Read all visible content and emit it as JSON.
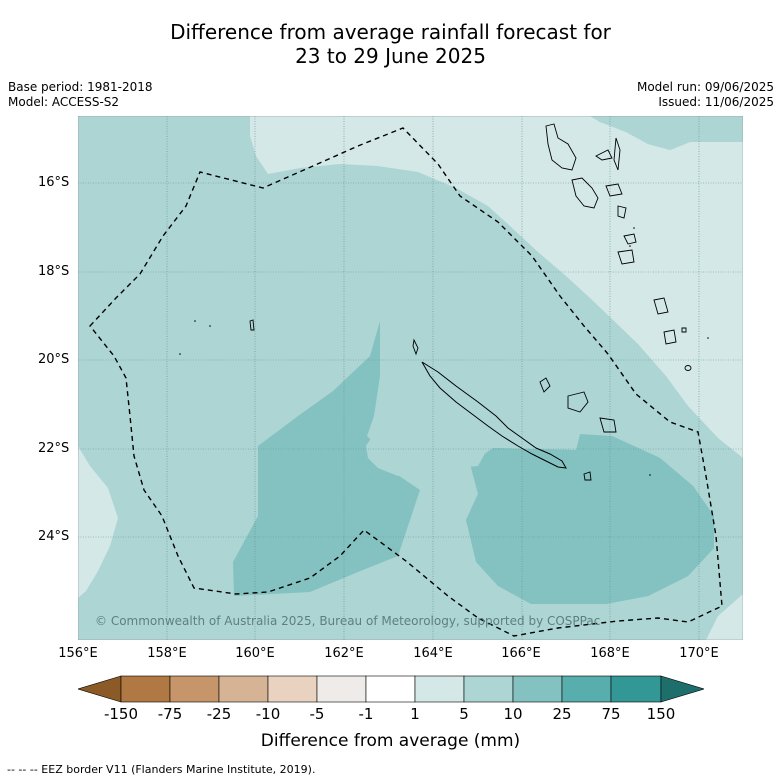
{
  "title_line1": "Difference from average rainfall forecast for",
  "title_line2": "23 to 29 June 2025",
  "base_period": "Base period: 1981-2018",
  "model": "Model: ACCESS-S2",
  "model_run": "Model run: 09/06/2025",
  "issued": "Issued: 11/06/2025",
  "copyright": "© Commonwealth of Australia 2025, Bureau of Meteorology, supported by COSPPac",
  "lat_labels": [
    "16°S",
    "18°S",
    "20°S",
    "22°S",
    "24°S"
  ],
  "lon_labels": [
    "156°E",
    "158°E",
    "160°E",
    "162°E",
    "164°E",
    "166°E",
    "168°E",
    "170°E"
  ],
  "colorbar": {
    "title": "Difference from average (mm)",
    "tick_labels": [
      "-150",
      "-75",
      "-25",
      "-10",
      "-5",
      "-1",
      "1",
      "5",
      "10",
      "25",
      "75",
      "150"
    ],
    "colors": [
      "#8c5a26",
      "#b07843",
      "#c6956a",
      "#d6b395",
      "#e9d3c0",
      "#efebe8",
      "#ffffff",
      "#d4e8e7",
      "#add5d4",
      "#84c2c1",
      "#58adad",
      "#339895",
      "#1e6f6c"
    ]
  },
  "legend_footer": "-- -- -- EEZ border V11 (Flanders Marine Institute, 2019)."
}
